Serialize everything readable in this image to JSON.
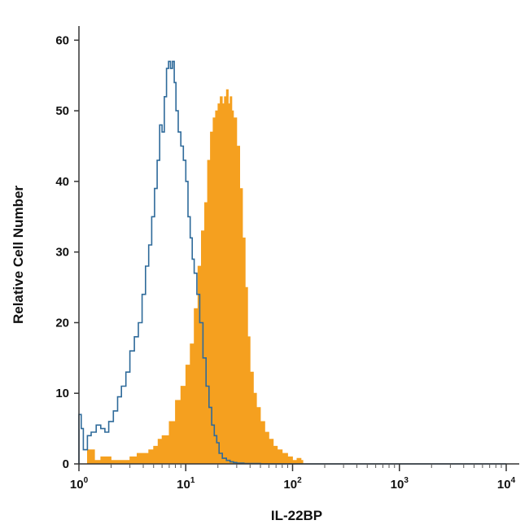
{
  "chart_data": {
    "type": "area",
    "title": "",
    "xlabel": "IL-22BP",
    "ylabel": "Relative Cell Number",
    "x_scale": "log",
    "xlim": [
      1,
      10000
    ],
    "ylim": [
      0,
      62
    ],
    "x_ticks": [
      {
        "base": "10",
        "exp": "0",
        "value": 1
      },
      {
        "base": "10",
        "exp": "1",
        "value": 10
      },
      {
        "base": "10",
        "exp": "2",
        "value": 100
      },
      {
        "base": "10",
        "exp": "3",
        "value": 1000
      },
      {
        "base": "10",
        "exp": "4",
        "value": 10000
      }
    ],
    "y_ticks": [
      {
        "label": "0",
        "value": 0
      },
      {
        "label": "10",
        "value": 10
      },
      {
        "label": "20",
        "value": 20
      },
      {
        "label": "30",
        "value": 30
      },
      {
        "label": "40",
        "value": 40
      },
      {
        "label": "50",
        "value": 50
      },
      {
        "label": "60",
        "value": 60
      }
    ],
    "grid": false,
    "legend": "none",
    "series": [
      {
        "style": "outline",
        "color": "#2e6a9a",
        "x": [
          1.0,
          1.05,
          1.1,
          1.2,
          1.3,
          1.45,
          1.6,
          1.75,
          1.9,
          2.1,
          2.3,
          2.5,
          2.75,
          3.0,
          3.3,
          3.6,
          3.9,
          4.2,
          4.5,
          4.8,
          5.1,
          5.4,
          5.7,
          6.0,
          6.3,
          6.6,
          6.9,
          7.2,
          7.5,
          7.8,
          8.1,
          8.5,
          9.0,
          9.5,
          10.0,
          10.5,
          11.0,
          11.5,
          12.0,
          12.7,
          13.5,
          14.5,
          15.5,
          16.5,
          17.5,
          18.5,
          19.5,
          20.5,
          22.0,
          24.0,
          26.0,
          28.0,
          30.0,
          35.0,
          50.0,
          100.0,
          1000.0,
          10000.0
        ],
        "y": [
          7,
          5,
          2,
          4,
          4.5,
          5.5,
          5,
          4.5,
          6,
          7.5,
          9.5,
          11,
          13,
          16,
          18,
          20,
          24,
          28,
          31,
          35,
          39,
          43,
          48,
          47,
          52,
          56,
          57,
          56,
          57,
          54,
          50,
          47,
          45,
          43,
          40,
          35,
          32,
          29,
          27,
          24,
          20,
          15,
          11,
          8,
          5.5,
          4,
          3,
          1.5,
          0.8,
          0.5,
          0.3,
          0.2,
          0.1,
          0.05,
          0,
          0,
          0,
          0
        ]
      },
      {
        "style": "filled",
        "color": "#f5a01f",
        "x": [
          1.0,
          1.2,
          1.4,
          1.6,
          2.0,
          2.5,
          3.0,
          3.5,
          4.0,
          4.5,
          5.0,
          5.5,
          6.0,
          7.0,
          8.0,
          9.0,
          10.0,
          11.0,
          12.0,
          13.0,
          14.0,
          15.0,
          16.0,
          17.0,
          18.0,
          19.0,
          20.0,
          21.0,
          22.0,
          23.0,
          24.0,
          25.0,
          26.0,
          27.0,
          28.0,
          30.0,
          32.0,
          34.0,
          36.0,
          38.0,
          40.0,
          43.0,
          46.0,
          50.0,
          55.0,
          60.0,
          66.0,
          72.0,
          80.0,
          90.0,
          100.0,
          110.0,
          120.0,
          125.0,
          200.0,
          1000.0,
          10000.0
        ],
        "y": [
          0,
          2,
          0.5,
          1,
          0.5,
          0.5,
          1,
          1.5,
          1.5,
          2,
          2.5,
          3.5,
          4,
          6,
          9,
          11,
          14,
          17,
          22,
          28,
          33,
          37,
          43,
          47,
          49,
          50,
          51,
          52,
          51,
          52,
          53,
          51,
          52,
          50,
          49,
          45,
          39,
          32,
          25,
          18,
          13,
          10,
          8,
          6,
          4.5,
          3.5,
          2.5,
          2,
          1.5,
          1,
          0.5,
          0.8,
          0.5,
          0,
          0,
          0,
          0
        ]
      }
    ]
  }
}
